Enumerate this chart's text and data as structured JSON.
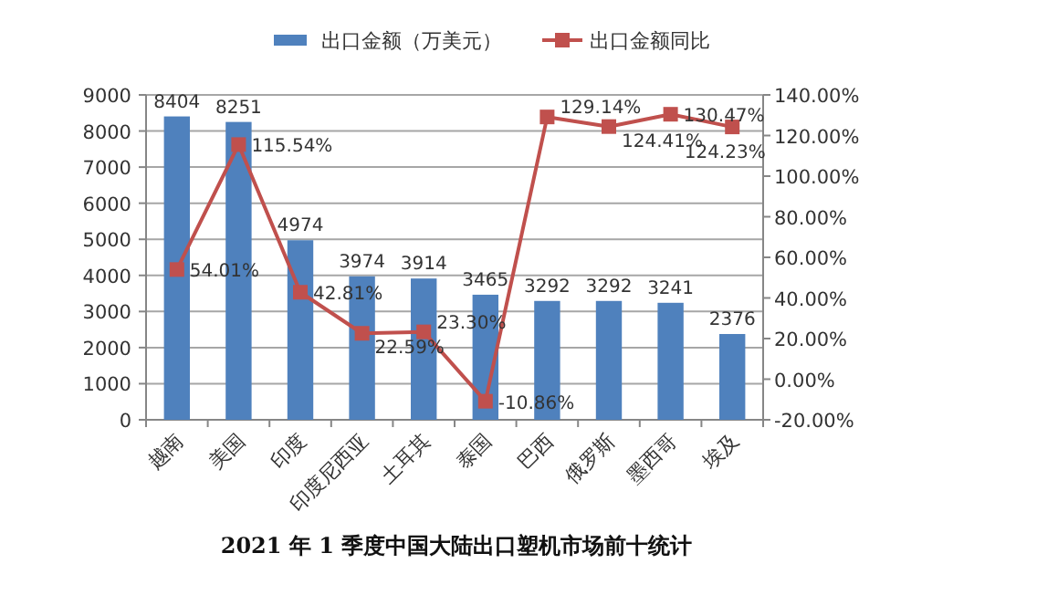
{
  "chart_data": {
    "type": "bar",
    "title": "2021 年 1 季度中国大陆出口塑机市场前十统计",
    "categories": [
      "越南",
      "美国",
      "印度",
      "印度尼西亚",
      "土耳其",
      "泰国",
      "巴西",
      "俄罗斯",
      "墨西哥",
      "埃及"
    ],
    "series": [
      {
        "name": "出口金额（万美元）",
        "color": "#4f81bd",
        "values": [
          8404,
          8251,
          4974,
          3974,
          3914,
          3465,
          3292,
          3292,
          3241,
          2376
        ]
      },
      {
        "name": "出口金额同比",
        "type": "line",
        "axis": "y2",
        "color": "#c0504d",
        "marker": "square",
        "values": [
          54.01,
          115.54,
          42.81,
          22.59,
          23.3,
          -10.86,
          129.14,
          124.41,
          130.47,
          124.23
        ],
        "value_labels": [
          "54.01%",
          "115.54%",
          "42.81%",
          "22.59%",
          "23.30%",
          "-10.86%",
          "129.14%",
          "124.41%",
          "130.47%",
          "124.23%"
        ]
      }
    ],
    "ylim": [
      0,
      9000
    ],
    "yticks": [
      0,
      1000,
      2000,
      3000,
      4000,
      5000,
      6000,
      7000,
      8000,
      9000
    ],
    "y2lim": [
      -20,
      140
    ],
    "y2ticks": [
      {
        "value": -20,
        "label": "-20.00%"
      },
      {
        "value": 0,
        "label": "0.00%"
      },
      {
        "value": 20,
        "label": "20.00%"
      },
      {
        "value": 40,
        "label": "40.00%"
      },
      {
        "value": 60,
        "label": "60.00%"
      },
      {
        "value": 80,
        "label": "80.00%"
      },
      {
        "value": 100,
        "label": "100.00%"
      },
      {
        "value": 120,
        "label": "120.00%"
      },
      {
        "value": 140,
        "label": "140.00%"
      }
    ],
    "grid": "y",
    "legend": "top",
    "data_labels": true
  }
}
